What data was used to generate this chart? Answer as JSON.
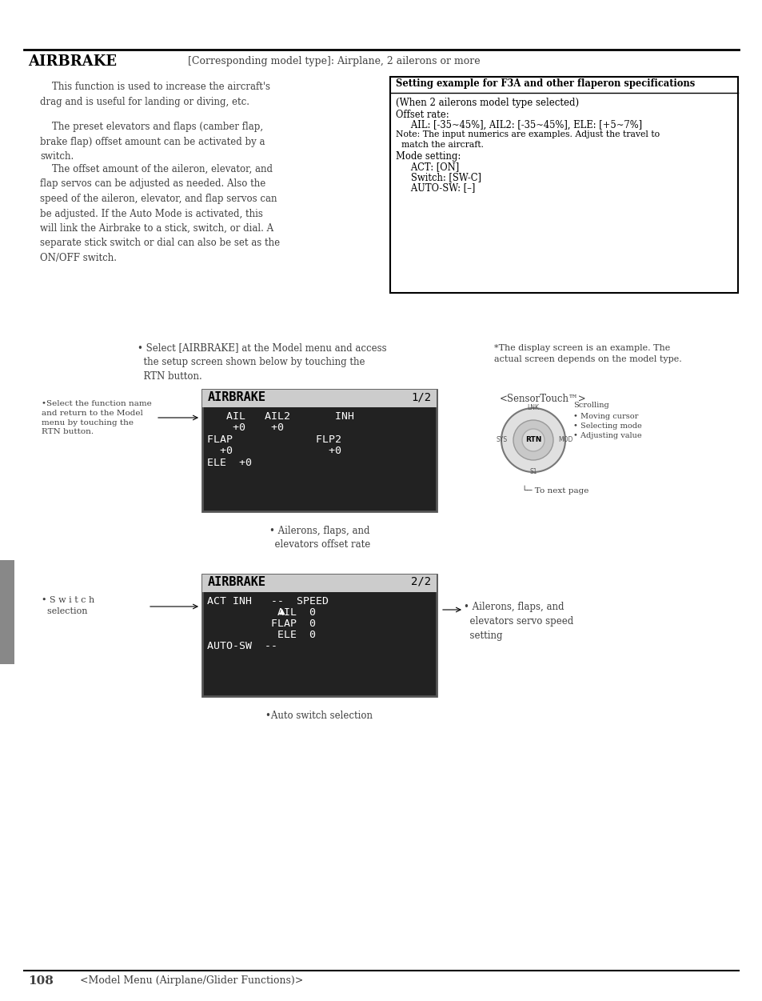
{
  "page_title": "AIRBRAKE",
  "page_subtitle": "[Corresponding model type]: Airplane, 2 ailerons or more",
  "body_paragraphs": [
    "    This function is used to increase the aircraft's\ndrag and is useful for landing or diving, etc.",
    "    The preset elevators and flaps (camber flap,\nbrake flap) offset amount can be activated by a\nswitch.",
    "    The offset amount of the aileron, elevator, and\nflap servos can be adjusted as needed. Also the\nspeed of the aileron, elevator, and flap servos can\nbe adjusted. If the Auto Mode is activated, this\nwill link the Airbrake to a stick, switch, or dial. A\nseparate stick switch or dial can also be set as the\nON/OFF switch."
  ],
  "box_title": "Setting example for F3A and other flaperon specifications",
  "box_lines": [
    "(When 2 ailerons model type selected)",
    "Offset rate:",
    "   AIL: [-35~45%], AIL2: [-35~45%], ELE: [+5~7%]",
    "Note: The input numerics are examples. Adjust the travel to",
    "  match the aircraft.",
    "Mode setting:",
    "   ACT: [ON]",
    "   Switch: [SW-C]",
    "   AUTO-SW: [–]"
  ],
  "bullet1": "• Select [AIRBRAKE] at the Model menu and access\n  the setup screen shown below by touching the\n  RTN button.",
  "screen_note": "*The display screen is an example. The\nactual screen depends on the model type.",
  "screen1_title": "AIRBRAKE",
  "screen1_page": "1/2",
  "screen1_lines": [
    "   AIL   AIL2       INH",
    "    +0    +0",
    "FLAP             FLP2",
    "  +0               +0",
    "ELE  +0"
  ],
  "left_note1": "•Select the function name\nand return to the Model\nmenu by touching the\nRTN button.",
  "bottom_note1": "• Ailerons, flaps, and\n  elevators offset rate",
  "sensor_label": "<SensorTouch™>",
  "sensor_items": [
    "Scrolling",
    "• Moving cursor",
    "• Selecting mode",
    "• Adjusting value"
  ],
  "to_next": "└─ To next page",
  "screen2_title": "AIRBRAKE",
  "screen2_page": "2/2",
  "screen2_lines": [
    "ACT INH   --  SPEED",
    "           AIL  0",
    "          FLAP  0",
    "           ELE  0",
    "AUTO-SW  --"
  ],
  "left_note2": "• S w i t c h\n  selection",
  "bottom_note2": "•Auto switch selection",
  "right_note2": "• Ailerons, flaps, and\n  elevators servo speed\n  setting",
  "footer_num": "108",
  "footer_text": "<Model Menu (Airplane/Glider Functions)>",
  "bg": "#ffffff",
  "fg": "#404040",
  "screen_bg": "#222222",
  "screen_header_bg": "#cccccc",
  "screen_fg": "#ffffff",
  "screen_header_fg": "#000000",
  "box_border": "#000000",
  "sidebar_color": "#888888"
}
